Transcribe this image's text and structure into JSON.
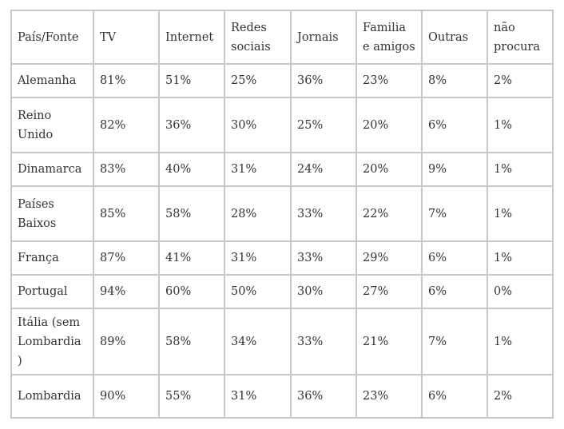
{
  "headers": [
    "País/Fonte",
    "TV",
    "Internet",
    "Redes sociais",
    "Jornais",
    "Familia e amigos",
    "Outras",
    "não procura"
  ],
  "rows": [
    [
      "Alemanha",
      "81%",
      "51%",
      "25%",
      "36%",
      "23%",
      "8%",
      "2%"
    ],
    [
      "Reino Unido",
      "82%",
      "36%",
      "30%",
      "25%",
      "20%",
      "6%",
      "1%"
    ],
    [
      "Dinamarca",
      "83%",
      "40%",
      "31%",
      "24%",
      "20%",
      "9%",
      "1%"
    ],
    [
      "Países Baixos",
      "85%",
      "58%",
      "28%",
      "33%",
      "22%",
      "7%",
      "1%"
    ],
    [
      "França",
      "87%",
      "41%",
      "31%",
      "33%",
      "29%",
      "6%",
      "1%"
    ],
    [
      "Portugal",
      "94%",
      "60%",
      "50%",
      "30%",
      "27%",
      "6%",
      "0%"
    ],
    [
      "Itália (sem Lombardia )",
      "89%",
      "58%",
      "34%",
      "33%",
      "21%",
      "7%",
      "1%"
    ],
    [
      "Lombardia",
      "90%",
      "55%",
      "31%",
      "36%",
      "23%",
      "6%",
      "2%"
    ]
  ]
}
